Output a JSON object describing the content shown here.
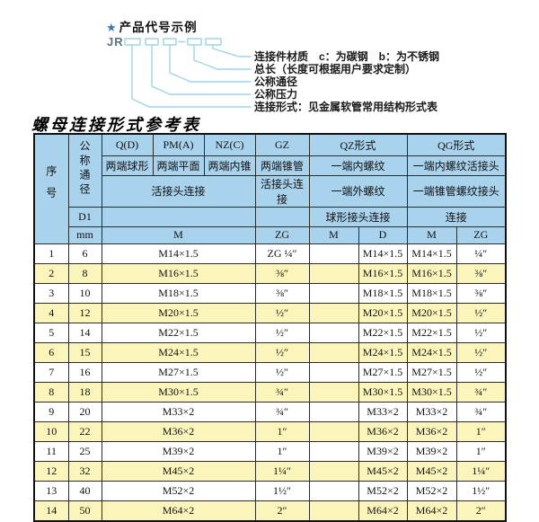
{
  "diagram": {
    "star_icon": "★",
    "title": "产品代号示例",
    "code_prefix": "JR",
    "separator": "-",
    "labels": [
      "连接件材质　c：为碳钢　b：为不锈钢",
      "总长（长度可根据用户要求定制）",
      "公称通径",
      "公称压力",
      "连接形式：见金属软管常用结构形式表"
    ]
  },
  "table": {
    "title": "螺母连接形式参考表",
    "header": {
      "seq": "序号",
      "dn": "公称通径",
      "d1": "D1",
      "mm": "mm",
      "col_q": "Q(D)",
      "col_pm": "PM(A)",
      "col_nz": "NZ(C)",
      "col_gz": "GZ",
      "col_qz": "QZ形式",
      "col_qg": "QG形式",
      "q_desc": "两端球形",
      "pm_desc": "两端平面",
      "nz_desc": "两端内锥",
      "gz_desc": "两端锥管",
      "qz_desc1": "一端内螺纹",
      "qg_desc1": "一端内螺纹活接头",
      "union_connect": "活接头连接",
      "gz_connect": "活接头连接",
      "qz_desc2": "一端外螺纹",
      "qg_desc2": "一端锥管螺纹接头",
      "qz_connect": "球形接头连接",
      "qg_connect": "连接",
      "unit_m": "M",
      "unit_zg": "ZG",
      "qz_unit_m": "M",
      "qz_unit_d": "D",
      "qg_unit_m": "M",
      "qg_unit_zg": "ZG"
    },
    "rows": [
      {
        "cells": [
          "1",
          "6",
          "M14×1.5",
          "ZG ¼″",
          "",
          "M14×1.5",
          "M14×1.5",
          "¼″"
        ]
      },
      {
        "cells": [
          "2",
          "8",
          "M16×1.5",
          "⅜″",
          "",
          "M16×1.5",
          "M16×1.5",
          "⅜″"
        ]
      },
      {
        "cells": [
          "3",
          "10",
          "M18×1.5",
          "⅜″",
          "",
          "M18×1.5",
          "M18×1.5",
          "⅜″"
        ]
      },
      {
        "cells": [
          "4",
          "12",
          "M20×1.5",
          "½″",
          "",
          "M20×1.5",
          "M20×1.5",
          "½″"
        ]
      },
      {
        "cells": [
          "5",
          "14",
          "M22×1.5",
          "½″",
          "",
          "M22×1.5",
          "M22×1.5",
          "½″"
        ]
      },
      {
        "cells": [
          "6",
          "15",
          "M24×1.5",
          "½″",
          "",
          "M24×1.5",
          "M24×1.5",
          "½″"
        ]
      },
      {
        "cells": [
          "7",
          "16",
          "M27×1.5",
          "½″",
          "",
          "M27×1.5",
          "M27×1.5",
          "½″"
        ]
      },
      {
        "cells": [
          "8",
          "18",
          "M30×1.5",
          "¾″",
          "",
          "M30×1.5",
          "M30×1.5",
          "¾″"
        ]
      },
      {
        "cells": [
          "9",
          "20",
          "M33×2",
          "¾″",
          "",
          "M33×2",
          "M33×2",
          "¾″"
        ]
      },
      {
        "cells": [
          "10",
          "22",
          "M36×2",
          "1″",
          "",
          "M36×2",
          "M36×2",
          "1″"
        ]
      },
      {
        "cells": [
          "11",
          "25",
          "M39×2",
          "1″",
          "",
          "M39×2",
          "M39×2",
          "1″"
        ]
      },
      {
        "cells": [
          "12",
          "32",
          "M45×2",
          "1¼″",
          "",
          "M45×2",
          "M45×2",
          "1¼″"
        ]
      },
      {
        "cells": [
          "13",
          "40",
          "M52×2",
          "1½″",
          "",
          "M52×2",
          "M52×2",
          "1½″"
        ]
      },
      {
        "cells": [
          "14",
          "50",
          "M64×2",
          "2″",
          "",
          "M64×2",
          "M64×2",
          "2″"
        ]
      }
    ]
  },
  "colors": {
    "header_bg": "#a9d2ed",
    "alt_row_bg": "#fbf5bb",
    "diagram_line": "#9fd3e6",
    "star_blue": "#2f7cc0",
    "border": "#111111"
  }
}
